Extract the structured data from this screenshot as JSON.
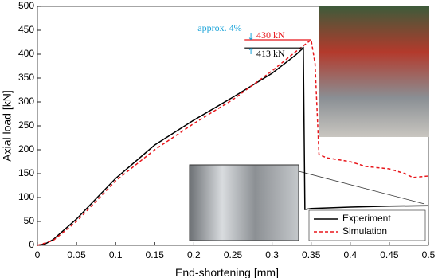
{
  "chart_data": {
    "type": "line",
    "x_label": "End-shortening [mm]",
    "y_label": "Axial load [kN]",
    "xlim": [
      0,
      0.5
    ],
    "ylim": [
      0,
      500
    ],
    "xticks": [
      0,
      0.05,
      0.1,
      0.15,
      0.2,
      0.25,
      0.3,
      0.35,
      0.4,
      0.45,
      0.5
    ],
    "yticks": [
      0,
      50,
      100,
      150,
      200,
      250,
      300,
      350,
      400,
      450,
      500
    ],
    "grid": false,
    "legend": "lower right",
    "series": [
      {
        "name": "Experiment",
        "color": "#000000",
        "dash": "solid",
        "x": [
          0,
          0.01,
          0.02,
          0.05,
          0.1,
          0.15,
          0.2,
          0.25,
          0.3,
          0.33,
          0.34,
          0.342,
          0.35,
          0.4,
          0.45,
          0.5
        ],
        "values": [
          0,
          3,
          12,
          55,
          140,
          210,
          262,
          310,
          360,
          398,
          413,
          75,
          77,
          80,
          82,
          83
        ]
      },
      {
        "name": "Simulation",
        "color": "#e8161b",
        "dash": "dashed",
        "x": [
          0,
          0.02,
          0.05,
          0.1,
          0.15,
          0.2,
          0.25,
          0.3,
          0.33,
          0.35,
          0.355,
          0.36,
          0.37,
          0.4,
          0.42,
          0.45,
          0.47,
          0.48,
          0.5
        ],
        "values": [
          0,
          10,
          50,
          135,
          200,
          255,
          305,
          365,
          405,
          430,
          380,
          190,
          183,
          175,
          165,
          160,
          150,
          142,
          145
        ]
      }
    ],
    "annotations": [
      {
        "text": "approx. 4%",
        "color": "#1aa3d9"
      },
      {
        "text": "430 kN",
        "value": 430,
        "color": "#e8161b"
      },
      {
        "text": "413 kN",
        "value": 413,
        "color": "#000000"
      }
    ]
  }
}
